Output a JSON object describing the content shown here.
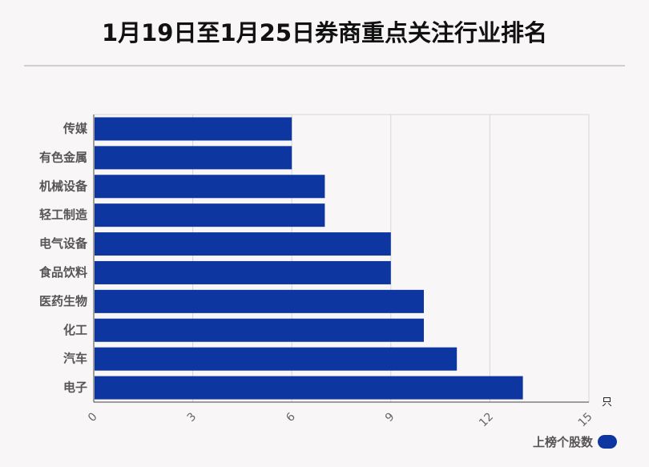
{
  "title": "1月19日至1月25日券商重点关注行业排名",
  "chart_data": {
    "type": "bar",
    "orientation": "horizontal",
    "title": "1月19日至1月25日券商重点关注行业排名",
    "categories": [
      "传媒",
      "有色金属",
      "机械设备",
      "轻工制造",
      "电气设备",
      "食品饮料",
      "医药生物",
      "化工",
      "汽车",
      "电子"
    ],
    "series": [
      {
        "name": "上榜个股数",
        "values": [
          6,
          6,
          7,
          7,
          9,
          9,
          10,
          10,
          11,
          13
        ],
        "color": "#0e36a0"
      }
    ],
    "x_ticks": [
      "0",
      "3",
      "6",
      "9",
      "12",
      "15"
    ],
    "xlim": [
      0,
      15
    ],
    "x_unit": "只",
    "grid": true,
    "legend_position": "bottom-right"
  },
  "legend": {
    "label": "上榜个股数"
  }
}
